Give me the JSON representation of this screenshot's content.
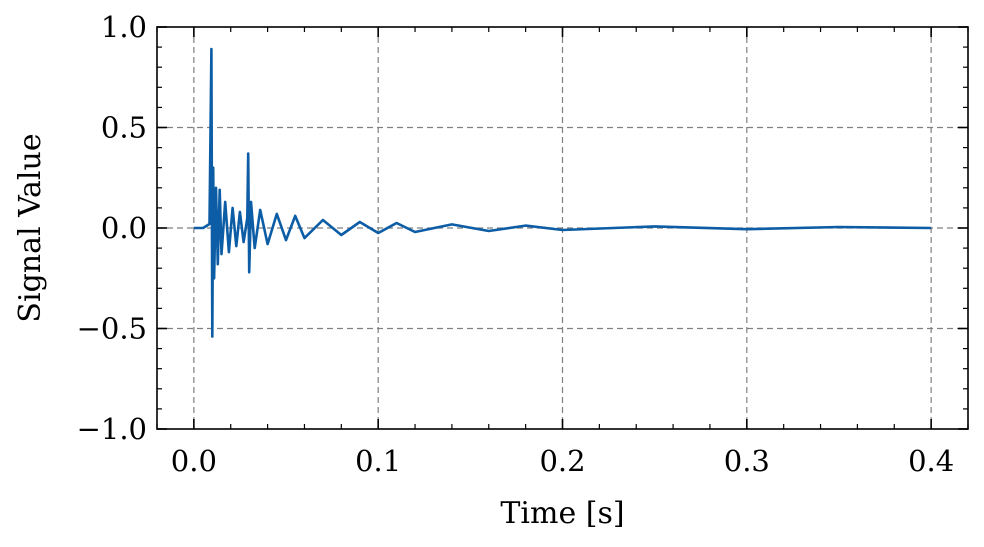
{
  "chart_data": {
    "type": "line",
    "title": "",
    "xlabel": "Time [s]",
    "ylabel": "Signal Value",
    "xlim": [
      -0.02,
      0.42
    ],
    "ylim": [
      -1.0,
      1.0
    ],
    "x_ticks": [
      0.0,
      0.1,
      0.2,
      0.3,
      0.4
    ],
    "x_tick_labels": [
      "0.0",
      "0.1",
      "0.2",
      "0.3",
      "0.4"
    ],
    "y_ticks": [
      -1.0,
      -0.5,
      0.0,
      0.5,
      1.0
    ],
    "y_tick_labels": [
      "−1.0",
      "−0.5",
      "0.0",
      "0.5",
      "1.0"
    ],
    "grid": true,
    "legend": "none",
    "series_color": "#0C5DA5",
    "grid_color": "#808080",
    "series": [
      {
        "x": [
          0.0,
          0.005,
          0.0085,
          0.0095,
          0.01,
          0.0105,
          0.011,
          0.012,
          0.013,
          0.014,
          0.015,
          0.017,
          0.019,
          0.021,
          0.023,
          0.025,
          0.027,
          0.029,
          0.0295,
          0.03,
          0.031,
          0.033,
          0.036,
          0.04,
          0.045,
          0.05,
          0.055,
          0.06,
          0.07,
          0.08,
          0.09,
          0.1,
          0.11,
          0.12,
          0.14,
          0.16,
          0.18,
          0.2,
          0.25,
          0.3,
          0.35,
          0.4
        ],
        "y": [
          0.0,
          0.0,
          0.02,
          0.89,
          -0.54,
          0.3,
          -0.25,
          0.2,
          -0.18,
          0.19,
          -0.13,
          0.13,
          -0.12,
          0.1,
          -0.09,
          0.08,
          -0.07,
          0.05,
          0.37,
          -0.22,
          0.13,
          -0.1,
          0.09,
          -0.08,
          0.07,
          -0.06,
          0.06,
          -0.05,
          0.04,
          -0.035,
          0.03,
          -0.025,
          0.025,
          -0.02,
          0.018,
          -0.015,
          0.012,
          -0.01,
          0.008,
          -0.006,
          0.005,
          0.0
        ]
      }
    ]
  }
}
